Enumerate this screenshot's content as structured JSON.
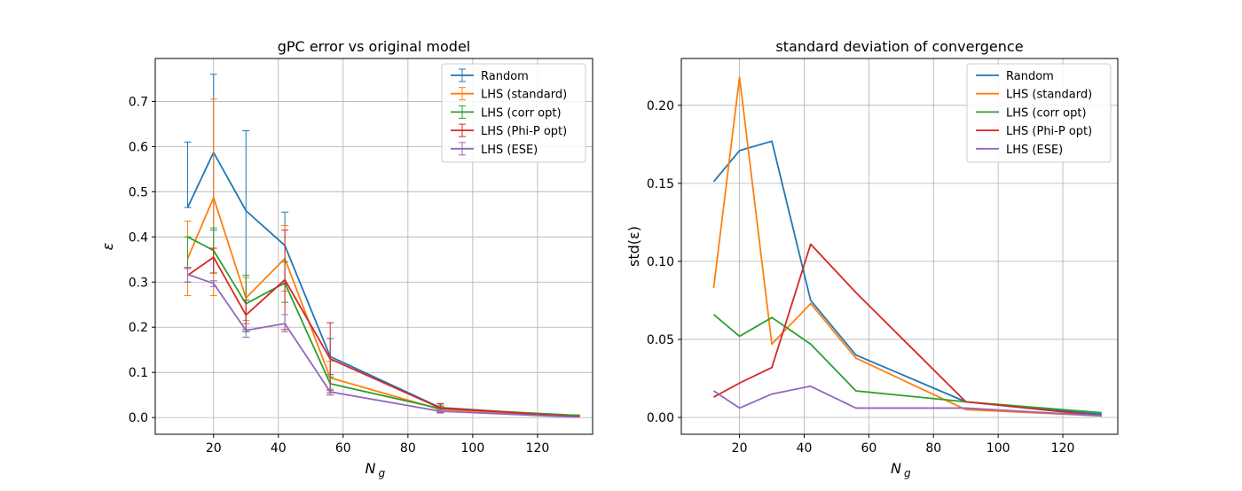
{
  "colors": {
    "Random": "#1f77b4",
    "LHS (standard)": "#ff7f0e",
    "LHS (corr opt)": "#2ca02c",
    "LHS (Phi-P opt)": "#d62728",
    "LHS (ESE)": "#9467bd",
    "grid": "#b0b0b0",
    "axis": "#000000"
  },
  "chart_data": [
    {
      "type": "line",
      "title": "gPC error vs original model",
      "xlabel": "N_g",
      "ylabel": "ε",
      "xlim": [
        2,
        137
      ],
      "ylim": [
        -0.037,
        0.795
      ],
      "xticks": [
        20,
        40,
        60,
        80,
        100,
        120
      ],
      "xtick_labels": [
        "20",
        "40",
        "60",
        "80",
        "100",
        "120"
      ],
      "yticks": [
        0.0,
        0.1,
        0.2,
        0.3,
        0.4,
        0.5,
        0.6,
        0.7
      ],
      "ytick_labels": [
        "0.0",
        "0.1",
        "0.2",
        "0.3",
        "0.4",
        "0.5",
        "0.6",
        "0.7"
      ],
      "grid": true,
      "error_bars": true,
      "legend_position": "top-right",
      "x": [
        12,
        20,
        30,
        42,
        56,
        90,
        132
      ],
      "series": [
        {
          "name": "Random",
          "values": [
            0.465,
            0.587,
            0.458,
            0.381,
            0.135,
            0.022,
            0.003
          ],
          "lower": [
            0.465,
            0.415,
            0.19,
            0.295,
            0.095,
            0.012,
            0.002
          ],
          "upper": [
            0.61,
            0.76,
            0.635,
            0.455,
            0.175,
            0.03,
            0.004
          ]
        },
        {
          "name": "LHS (standard)",
          "values": [
            0.352,
            0.487,
            0.265,
            0.352,
            0.088,
            0.018,
            0.003
          ],
          "lower": [
            0.27,
            0.27,
            0.215,
            0.28,
            0.05,
            0.012,
            0.002
          ],
          "upper": [
            0.435,
            0.705,
            0.31,
            0.425,
            0.125,
            0.024,
            0.004
          ]
        },
        {
          "name": "LHS (corr opt)",
          "values": [
            0.4,
            0.37,
            0.252,
            0.298,
            0.075,
            0.02,
            0.005
          ],
          "lower": [
            0.33,
            0.32,
            0.19,
            0.255,
            0.06,
            0.014,
            0.004
          ],
          "upper": [
            0.4,
            0.42,
            0.315,
            0.345,
            0.09,
            0.026,
            0.006
          ]
        },
        {
          "name": "LHS (Phi-P opt)",
          "values": [
            0.315,
            0.355,
            0.227,
            0.305,
            0.13,
            0.021,
            0.002
          ],
          "lower": [
            0.3,
            0.32,
            0.195,
            0.195,
            0.055,
            0.011,
            0.001
          ],
          "upper": [
            0.33,
            0.375,
            0.26,
            0.415,
            0.21,
            0.031,
            0.003
          ]
        },
        {
          "name": "LHS (ESE)",
          "values": [
            0.317,
            0.297,
            0.193,
            0.208,
            0.057,
            0.014,
            0.001
          ],
          "lower": [
            0.3,
            0.29,
            0.178,
            0.19,
            0.05,
            0.01,
            0.001
          ],
          "upper": [
            0.333,
            0.303,
            0.208,
            0.228,
            0.063,
            0.018,
            0.001
          ]
        }
      ]
    },
    {
      "type": "line",
      "title": "standard deviation of convergence",
      "xlabel": "N_g",
      "ylabel": "std(ε)",
      "xlim": [
        2,
        137
      ],
      "ylim": [
        -0.0108,
        0.23
      ],
      "xticks": [
        20,
        40,
        60,
        80,
        100,
        120
      ],
      "xtick_labels": [
        "20",
        "40",
        "60",
        "80",
        "100",
        "120"
      ],
      "yticks": [
        0.0,
        0.05,
        0.1,
        0.15,
        0.2
      ],
      "ytick_labels": [
        "0.00",
        "0.05",
        "0.10",
        "0.15",
        "0.20"
      ],
      "grid": true,
      "error_bars": false,
      "legend_position": "top-right",
      "x": [
        12,
        20,
        30,
        42,
        56,
        90,
        132
      ],
      "series": [
        {
          "name": "Random",
          "values": [
            0.151,
            0.171,
            0.177,
            0.075,
            0.04,
            0.01,
            0.002
          ]
        },
        {
          "name": "LHS (standard)",
          "values": [
            0.083,
            0.218,
            0.047,
            0.073,
            0.038,
            0.005,
            0.001
          ]
        },
        {
          "name": "LHS (corr opt)",
          "values": [
            0.066,
            0.052,
            0.064,
            0.047,
            0.017,
            0.01,
            0.003
          ]
        },
        {
          "name": "LHS (Phi-P opt)",
          "values": [
            0.013,
            0.022,
            0.032,
            0.111,
            0.08,
            0.01,
            0.001
          ]
        },
        {
          "name": "LHS (ESE)",
          "values": [
            0.017,
            0.006,
            0.015,
            0.02,
            0.006,
            0.006,
            0.001
          ]
        }
      ]
    }
  ]
}
